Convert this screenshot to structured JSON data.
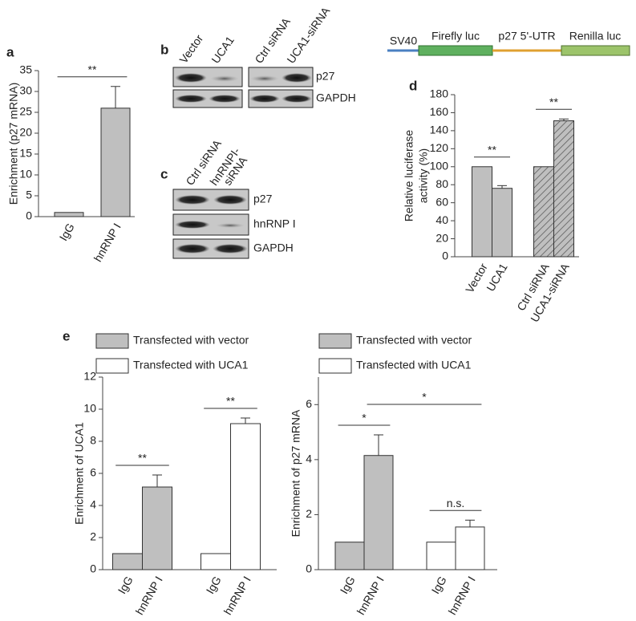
{
  "panel_labels": [
    "a",
    "b",
    "c",
    "d",
    "e"
  ],
  "blots": [
    {
      "lanes": [
        [
          "Vector"
        ],
        [
          "UCA1"
        ],
        [
          "Ctrl siRNA"
        ],
        [
          "UCA1-siRNA"
        ]
      ],
      "rows": [
        "p27",
        "GAPDH"
      ]
    },
    {
      "lanes": [
        [
          "Ctrl siRNA"
        ],
        [
          "hnRNPI-",
          "siRNA"
        ]
      ],
      "rows": [
        "p27",
        "hnRNP I",
        "GAPDH"
      ]
    }
  ],
  "construct": [
    "SV40",
    "Firefly luc",
    "p27 5'-UTR",
    "Renilla luc"
  ],
  "chart_data": [
    {
      "type": "bar",
      "ylabel": [
        "Enrichment (p27 mRNA)"
      ],
      "categories": [
        "IgG",
        "hnRNP I"
      ],
      "values": [
        1,
        26
      ],
      "errors": [
        null,
        5.2
      ],
      "color": "#bfbfbf",
      "ylim": [
        0,
        35
      ],
      "yticks": [
        0,
        5,
        10,
        15,
        20,
        25,
        30,
        35
      ],
      "annotations": [
        {
          "label": "**",
          "from": 0,
          "to": 1
        }
      ]
    },
    {
      "type": "bar",
      "ylabel": [
        "Relative luciferase",
        "activity (%)"
      ],
      "categories": [
        "Vector",
        "UCA1",
        "Ctrl siRNA",
        "UCA1-siRNA"
      ],
      "values": [
        100,
        76,
        100,
        151
      ],
      "errors": [
        null,
        3,
        null,
        2
      ],
      "hatch": [
        false,
        false,
        true,
        true
      ],
      "color": "#bfbfbf",
      "ylim": [
        0,
        180
      ],
      "yticks": [
        0,
        20,
        40,
        60,
        80,
        100,
        120,
        140,
        160,
        180
      ],
      "annotations": [
        {
          "label": "**",
          "from": 0,
          "to": 1
        },
        {
          "label": "**",
          "from": 2,
          "to": 3
        }
      ]
    },
    {
      "type": "bar",
      "ylabel": [
        "Enrichment of UCA1"
      ],
      "categories": [
        "IgG",
        "hnRNP I",
        "IgG",
        "hnRNP I"
      ],
      "series": [
        {
          "name": "Transfected with vector",
          "color": "#bfbfbf",
          "values": [
            1,
            5.15,
            null,
            null
          ],
          "errors": [
            null,
            0.75,
            null,
            null
          ]
        },
        {
          "name": "Transfected with UCA1",
          "color": "#ffffff",
          "values": [
            null,
            null,
            1,
            9.1
          ],
          "errors": [
            null,
            null,
            null,
            0.35
          ]
        }
      ],
      "ylim": [
        0,
        12
      ],
      "yticks": [
        0,
        2,
        4,
        6,
        8,
        10,
        12
      ],
      "annotations": [
        {
          "label": "**",
          "from": 0,
          "to": 1
        },
        {
          "label": "**",
          "from": 2,
          "to": 3
        }
      ]
    },
    {
      "type": "bar",
      "ylabel": [
        "Enrichment of p27 mRNA"
      ],
      "categories": [
        "IgG",
        "hnRNP I",
        "IgG",
        "hnRNP I"
      ],
      "series": [
        {
          "name": "Transfected with vector",
          "color": "#bfbfbf",
          "values": [
            1,
            4.15,
            null,
            null
          ],
          "errors": [
            null,
            0.75,
            null,
            null
          ]
        },
        {
          "name": "Transfected with UCA1",
          "color": "#ffffff",
          "values": [
            null,
            null,
            1,
            1.55
          ],
          "errors": [
            null,
            null,
            null,
            0.25
          ]
        }
      ],
      "ylim": [
        0,
        7
      ],
      "yticks": [
        0,
        2,
        4,
        6
      ],
      "annotations": [
        {
          "label": "*",
          "from": 0,
          "to": 1
        },
        {
          "label": "*",
          "from": 1,
          "to": 3
        },
        {
          "label": "n.s.",
          "from": 2,
          "to": 3
        }
      ]
    }
  ]
}
